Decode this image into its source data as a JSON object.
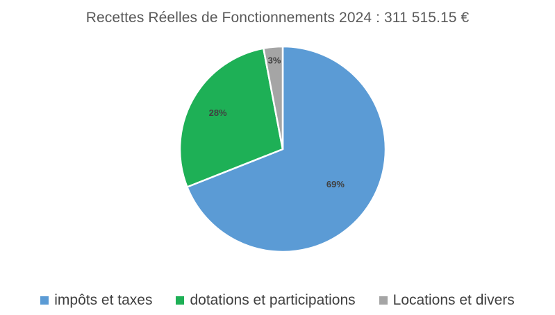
{
  "chart_data": {
    "type": "pie",
    "title": "Recettes Réelles de Fonctionnements 2024 : 311 515.15 €",
    "legend_position": "bottom",
    "slices": [
      {
        "label": "impôts et taxes",
        "value": 69,
        "display": "69%",
        "color": "#5b9bd5"
      },
      {
        "label": "dotations et participations",
        "value": 28,
        "display": "28%",
        "color": "#1eb056"
      },
      {
        "label": "Locations et divers",
        "value": 3,
        "display": "3%",
        "color": "#a5a5a5"
      }
    ]
  }
}
